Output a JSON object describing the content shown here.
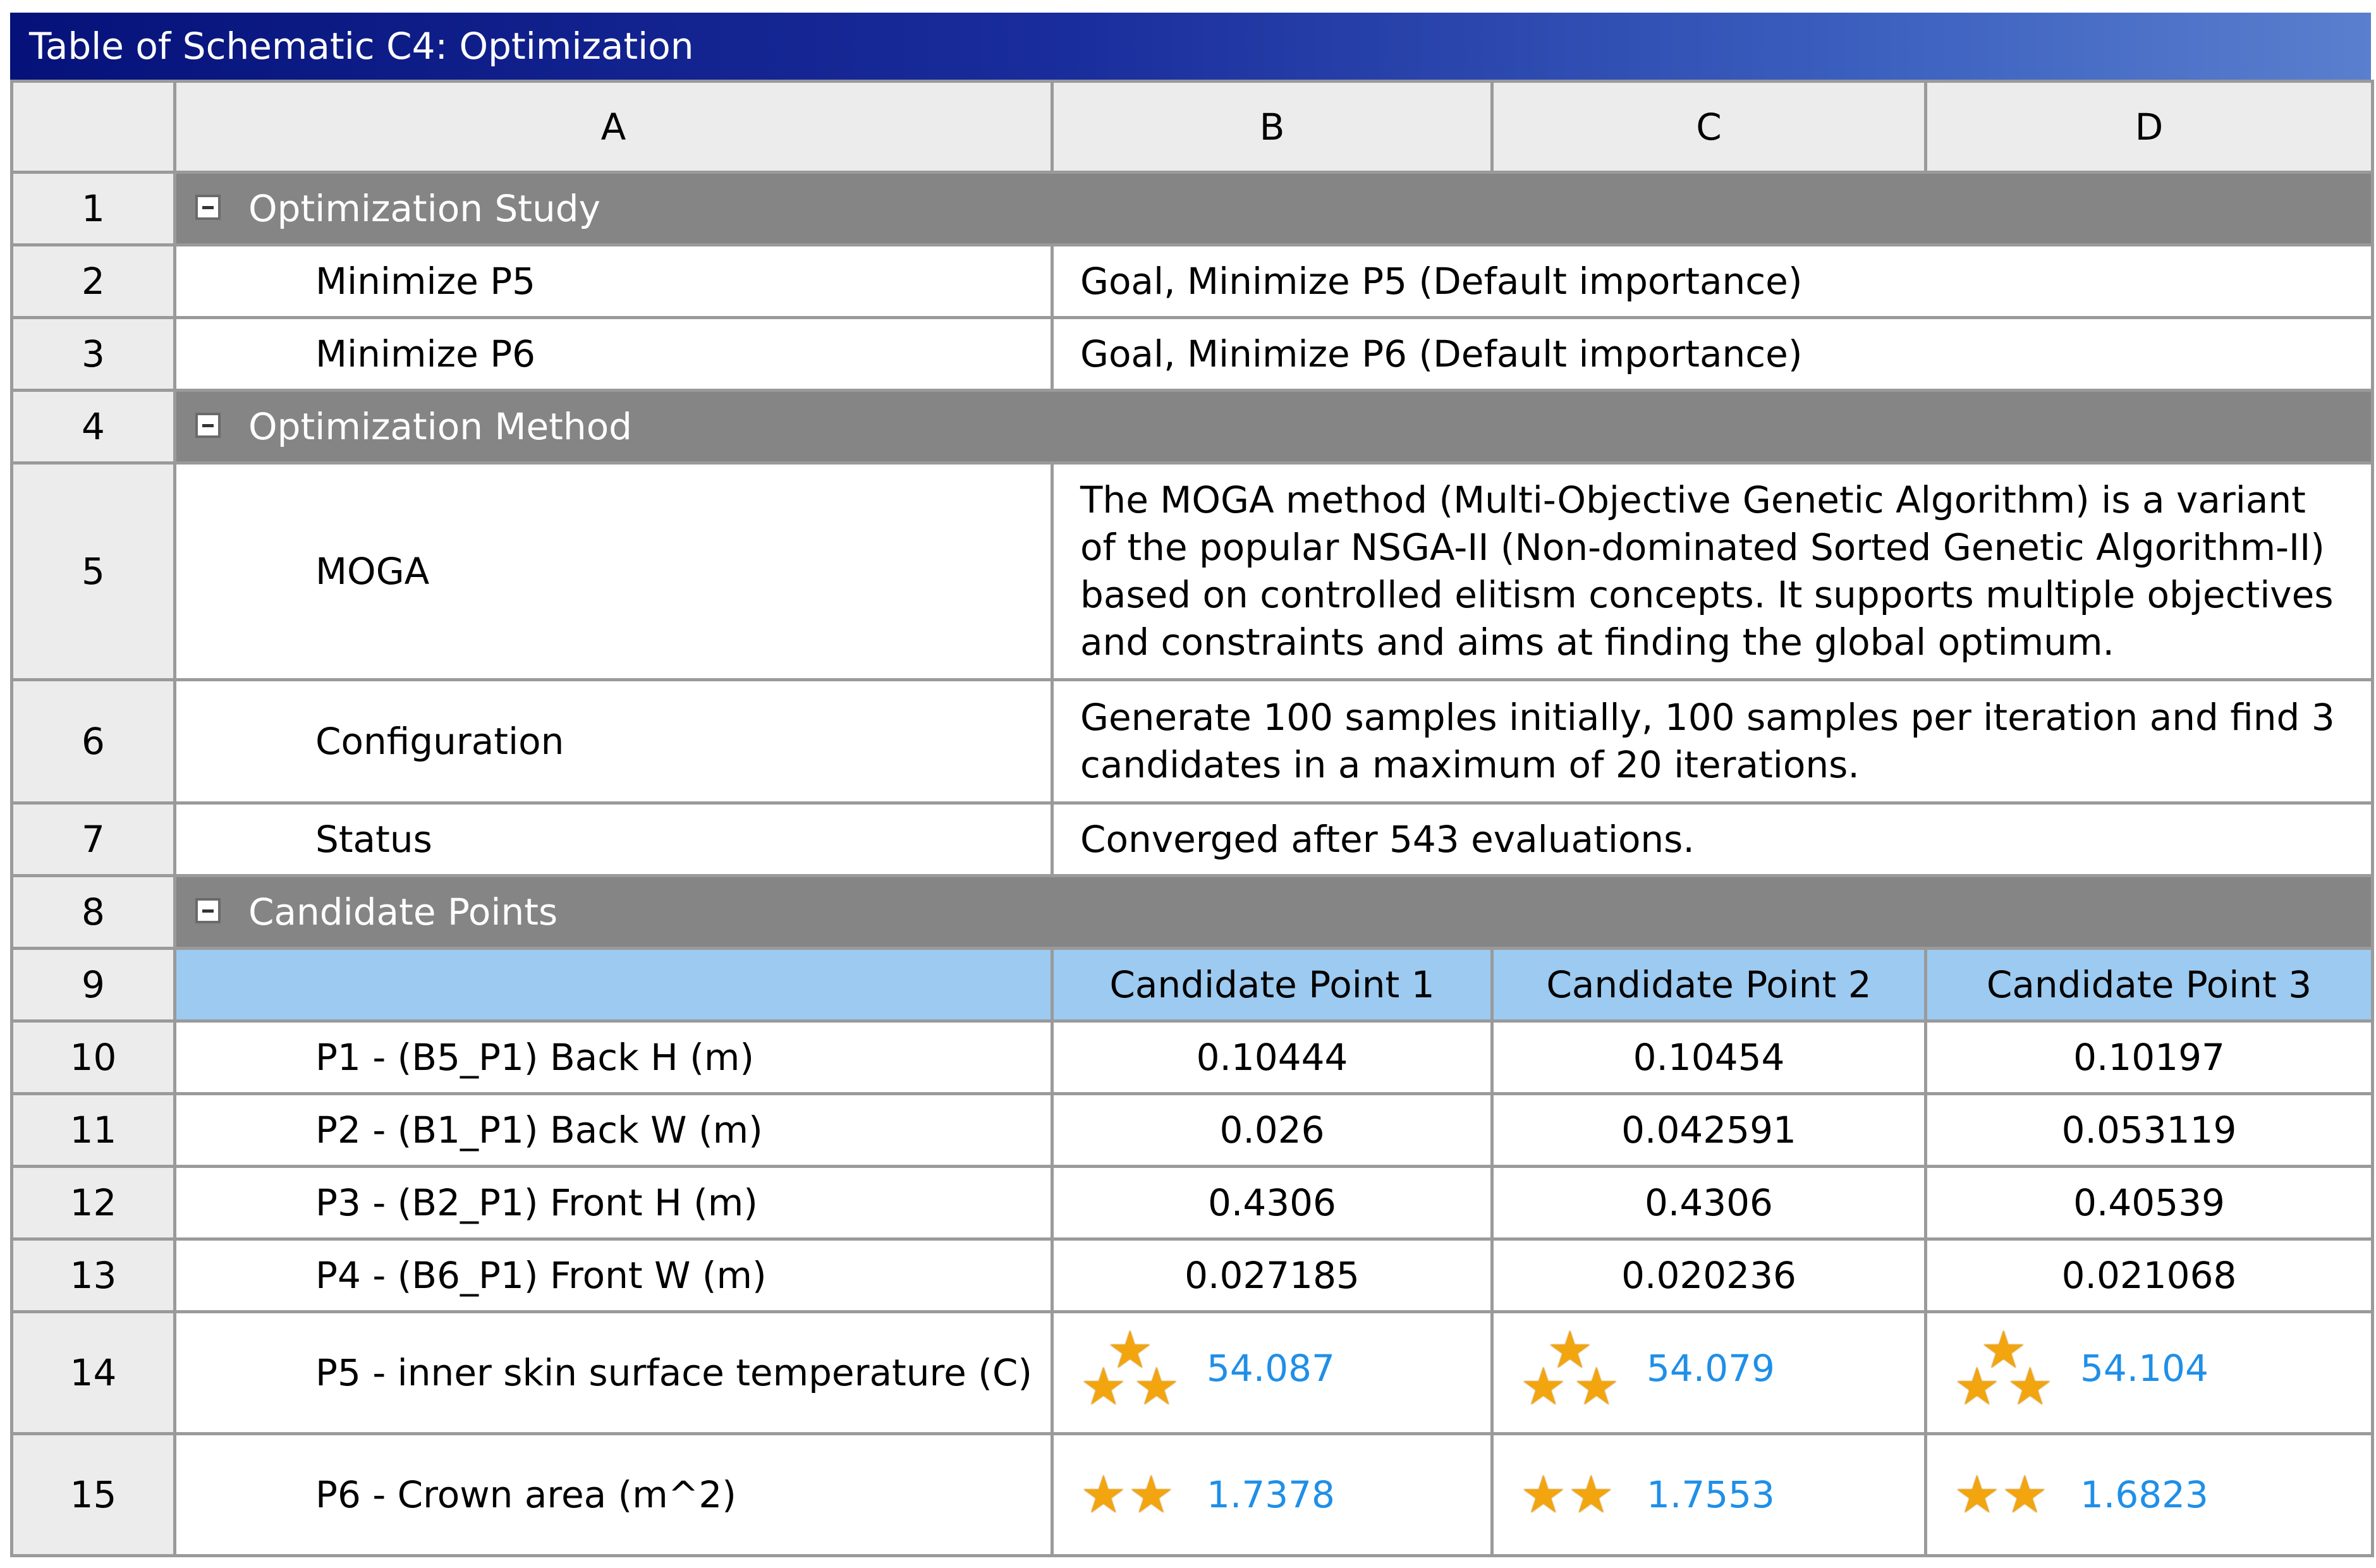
{
  "window": {
    "title": "Table of Schematic C4: Optimization"
  },
  "columns": [
    "A",
    "B",
    "C",
    "D"
  ],
  "rows": {
    "r1": {
      "num": "1",
      "label": "Optimization Study"
    },
    "r2": {
      "num": "2",
      "label": "Minimize P5",
      "value": "Goal, Minimize P5 (Default importance)"
    },
    "r3": {
      "num": "3",
      "label": "Minimize P6",
      "value": "Goal, Minimize P6 (Default importance)"
    },
    "r4": {
      "num": "4",
      "label": "Optimization Method"
    },
    "r5": {
      "num": "5",
      "label": "MOGA",
      "value": "The MOGA method (Multi-Objective Genetic Algorithm) is a variant of the popular NSGA-II (Non-dominated Sorted Genetic Algorithm-II) based on controlled elitism concepts. It supports multiple objectives and constraints and aims at finding the global optimum."
    },
    "r6": {
      "num": "6",
      "label": "Configuration",
      "value": "Generate 100 samples initially, 100 samples per iteration and find 3 candidates in a maximum of 20 iterations."
    },
    "r7": {
      "num": "7",
      "label": "Status",
      "value": "Converged after 543 evaluations."
    },
    "r8": {
      "num": "8",
      "label": "Candidate Points"
    },
    "r9": {
      "num": "9",
      "candidates": [
        "Candidate Point 1",
        "Candidate Point 2",
        "Candidate Point 3"
      ]
    },
    "r10": {
      "num": "10",
      "label": "P1 - (B5_P1) Back H (m)",
      "values": [
        "0.10444",
        "0.10454",
        "0.10197"
      ]
    },
    "r11": {
      "num": "11",
      "label": "P2 - (B1_P1) Back W (m)",
      "values": [
        "0.026",
        "0.042591",
        "0.053119"
      ]
    },
    "r12": {
      "num": "12",
      "label": "P3 - (B2_P1) Front H (m)",
      "values": [
        "0.4306",
        "0.4306",
        "0.40539"
      ]
    },
    "r13": {
      "num": "13",
      "label": "P4 - (B6_P1) Front W (m)",
      "values": [
        "0.027185",
        "0.020236",
        "0.021068"
      ]
    },
    "r14": {
      "num": "14",
      "label": "P5 - inner skin surface temperature (C)",
      "values": [
        "54.087",
        "54.079",
        "54.104"
      ],
      "stars": 3
    },
    "r15": {
      "num": "15",
      "label": "P6 - Crown area (m^2)",
      "values": [
        "1.7378",
        "1.7553",
        "1.6823"
      ],
      "stars": 2
    }
  },
  "icons": {
    "collapse": "collapse-minus-icon",
    "rating": "star-icon"
  },
  "colors": {
    "title_start": "#06127a",
    "title_end": "#5a7fce",
    "section": "#858585",
    "candidate_header": "#9ccaf0",
    "star": "#f2a50f",
    "rating_value": "#1f8fe8"
  }
}
